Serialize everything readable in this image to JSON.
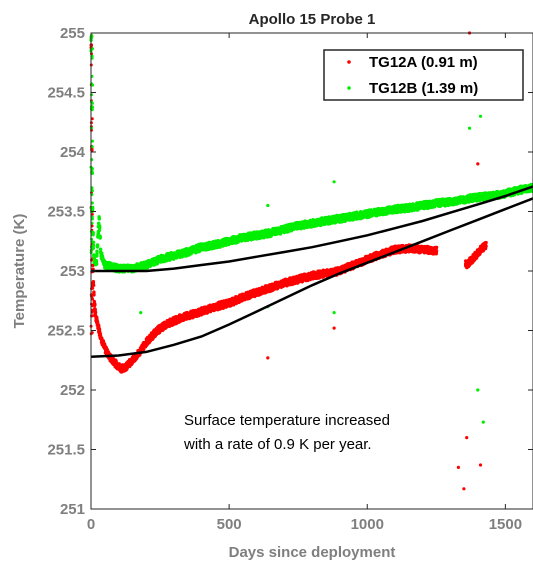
{
  "chart_data": {
    "type": "scatter",
    "title": "Apollo 15 Probe 1",
    "xlabel": "Days since deployment",
    "ylabel": "Temperature (K)",
    "xlim": [
      0,
      1600
    ],
    "ylim": [
      251,
      255
    ],
    "xticks": [
      0,
      500,
      1000,
      1500
    ],
    "yticks": [
      251,
      251.5,
      252,
      252.5,
      253,
      253.5,
      254,
      254.5,
      255
    ],
    "grid": false,
    "legend_position": "top-right",
    "annotation": [
      "Surface temperature increased",
      "with a rate of 0.9 K per year."
    ],
    "colors": {
      "TG12A": "#ff0000",
      "TG12B": "#00ee00",
      "fit": "#000000"
    },
    "series": [
      {
        "name": "TG12A (0.91 m)",
        "color": "#ff0000",
        "points": [
          [
            1,
            254.9
          ],
          [
            2,
            254.4
          ],
          [
            3,
            253.8
          ],
          [
            5,
            253.3
          ],
          [
            8,
            252.95
          ],
          [
            12,
            252.75
          ],
          [
            18,
            252.6
          ],
          [
            25,
            252.55
          ],
          [
            35,
            252.45
          ],
          [
            50,
            252.35
          ],
          [
            70,
            252.27
          ],
          [
            90,
            252.22
          ],
          [
            110,
            252.18
          ],
          [
            130,
            252.2
          ],
          [
            150,
            252.25
          ],
          [
            170,
            252.3
          ],
          [
            200,
            252.4
          ],
          [
            240,
            252.5
          ],
          [
            280,
            252.56
          ],
          [
            320,
            252.6
          ],
          [
            360,
            252.63
          ],
          [
            400,
            252.66
          ],
          [
            450,
            252.7
          ],
          [
            500,
            252.73
          ],
          [
            550,
            252.78
          ],
          [
            600,
            252.82
          ],
          [
            650,
            252.86
          ],
          [
            700,
            252.9
          ],
          [
            750,
            252.93
          ],
          [
            800,
            252.96
          ],
          [
            850,
            252.98
          ],
          [
            900,
            253.0
          ],
          [
            950,
            253.05
          ],
          [
            1000,
            253.1
          ],
          [
            1050,
            253.14
          ],
          [
            1100,
            253.18
          ],
          [
            1150,
            253.19
          ],
          [
            1200,
            253.18
          ],
          [
            1250,
            253.17
          ],
          [
            1360,
            253.05
          ],
          [
            1380,
            253.1
          ],
          [
            1400,
            253.15
          ],
          [
            1420,
            253.2
          ],
          [
            1430,
            253.22
          ]
        ],
        "outliers": [
          [
            640,
            252.27
          ],
          [
            880,
            252.52
          ],
          [
            1330,
            251.35
          ],
          [
            1350,
            251.17
          ],
          [
            1360,
            251.6
          ],
          [
            1370,
            255.0
          ],
          [
            1400,
            253.9
          ],
          [
            1410,
            251.37
          ]
        ]
      },
      {
        "name": "TG12B (1.39 m)",
        "color": "#00ee00",
        "points": [
          [
            1,
            254.95
          ],
          [
            2,
            254.6
          ],
          [
            3,
            254.2
          ],
          [
            5,
            253.6
          ],
          [
            8,
            253.25
          ],
          [
            12,
            253.1
          ],
          [
            20,
            253.05
          ],
          [
            25,
            253.3
          ],
          [
            30,
            253.45
          ],
          [
            35,
            253.15
          ],
          [
            50,
            253.05
          ],
          [
            100,
            253.02
          ],
          [
            150,
            253.02
          ],
          [
            200,
            253.05
          ],
          [
            250,
            253.1
          ],
          [
            300,
            253.13
          ],
          [
            350,
            253.16
          ],
          [
            400,
            253.2
          ],
          [
            450,
            253.22
          ],
          [
            500,
            253.25
          ],
          [
            550,
            253.28
          ],
          [
            600,
            253.3
          ],
          [
            650,
            253.32
          ],
          [
            700,
            253.35
          ],
          [
            750,
            253.38
          ],
          [
            800,
            253.4
          ],
          [
            850,
            253.42
          ],
          [
            900,
            253.44
          ],
          [
            950,
            253.46
          ],
          [
            1000,
            253.48
          ],
          [
            1050,
            253.5
          ],
          [
            1100,
            253.52
          ],
          [
            1150,
            253.53
          ],
          [
            1200,
            253.55
          ],
          [
            1250,
            253.57
          ],
          [
            1300,
            253.58
          ],
          [
            1350,
            253.6
          ],
          [
            1400,
            253.62
          ],
          [
            1450,
            253.63
          ],
          [
            1500,
            253.65
          ],
          [
            1550,
            253.68
          ],
          [
            1600,
            253.7
          ]
        ],
        "outliers": [
          [
            180,
            252.65
          ],
          [
            640,
            253.55
          ],
          [
            640,
            252.7
          ],
          [
            880,
            253.75
          ],
          [
            880,
            252.65
          ],
          [
            1370,
            254.2
          ],
          [
            1400,
            252.0
          ],
          [
            1410,
            254.3
          ],
          [
            1420,
            251.73
          ]
        ]
      }
    ],
    "fits": [
      {
        "series": "TG12A (0.91 m)",
        "points": [
          [
            0,
            252.28
          ],
          [
            100,
            252.29
          ],
          [
            200,
            252.32
          ],
          [
            300,
            252.38
          ],
          [
            400,
            252.45
          ],
          [
            500,
            252.55
          ],
          [
            600,
            252.66
          ],
          [
            700,
            252.77
          ],
          [
            800,
            252.88
          ],
          [
            900,
            252.98
          ],
          [
            1000,
            253.07
          ],
          [
            1100,
            253.16
          ],
          [
            1200,
            253.25
          ],
          [
            1300,
            253.34
          ],
          [
            1400,
            253.43
          ],
          [
            1500,
            253.52
          ],
          [
            1600,
            253.61
          ]
        ]
      },
      {
        "series": "TG12B (1.39 m)",
        "points": [
          [
            0,
            253.0
          ],
          [
            100,
            253.0
          ],
          [
            200,
            253.0
          ],
          [
            300,
            253.02
          ],
          [
            400,
            253.05
          ],
          [
            500,
            253.08
          ],
          [
            600,
            253.12
          ],
          [
            700,
            253.16
          ],
          [
            800,
            253.2
          ],
          [
            900,
            253.25
          ],
          [
            1000,
            253.3
          ],
          [
            1100,
            253.36
          ],
          [
            1200,
            253.42
          ],
          [
            1300,
            253.49
          ],
          [
            1400,
            253.56
          ],
          [
            1500,
            253.63
          ],
          [
            1600,
            253.71
          ]
        ]
      }
    ]
  }
}
